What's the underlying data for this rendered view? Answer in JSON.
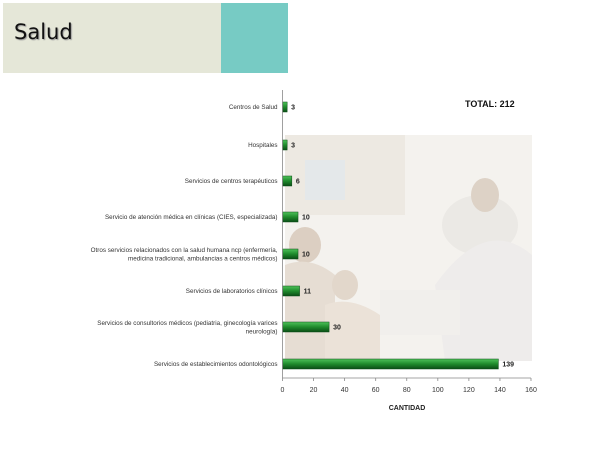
{
  "page": {
    "title": "Salud"
  },
  "colors": {
    "header_band": "#e5e7d8",
    "header_accent": "#77cbc4",
    "bar": "#1f8a2c",
    "bar_edge": "#0b4d16"
  },
  "chart_data": {
    "type": "bar",
    "orientation": "horizontal",
    "categories": [
      [
        "Centros de Salud"
      ],
      [
        "Hospitales"
      ],
      [
        "Servicios de centros terapéuticos"
      ],
      [
        "Servicio de atención médica en clínicas (CIES, especializada)"
      ],
      [
        "Otros servicios relacionados con la salud humana ncp (enfermería,",
        "medicina tradicional, ambulancias a centros médicos)"
      ],
      [
        "Servicios de laboratorios clínicos"
      ],
      [
        "Servicios de consultorios médicos (pediatria, ginecología varices",
        "neurología)"
      ],
      [
        "Servicios de establecimientos odontológicos"
      ]
    ],
    "values": [
      3,
      3,
      6,
      10,
      10,
      11,
      30,
      139
    ],
    "xlabel": "CANTIDAD",
    "xlim": [
      0,
      160
    ],
    "xticks": [
      0,
      20,
      40,
      60,
      80,
      100,
      120,
      140,
      160
    ],
    "annotation": "TOTAL: 212",
    "grid": false,
    "legend": "none"
  }
}
